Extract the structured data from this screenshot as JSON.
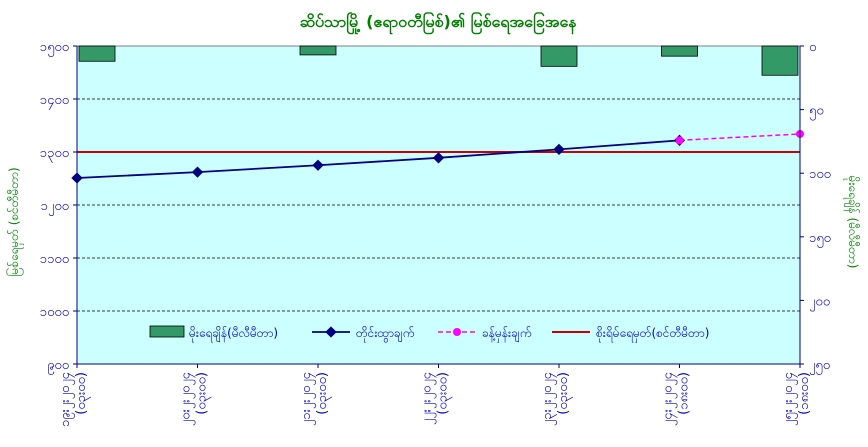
{
  "chart_data": {
    "type": "bar",
    "title": "ဆိပ်သာမြို့ (ဧရာဝတီမြစ်)၏ မြစ်ရေအခြေအနေ",
    "ylabel": "မြစ်ရေမှတ် (စင်တီမီတာ)",
    "y2label": "မိုးရေချိန် (မီလီမီတာ)",
    "ylim": [
      900,
      1500
    ],
    "y2lim": [
      0,
      250
    ],
    "y2_inverted": true,
    "yticks": [
      "၁၅၀၀",
      "၁၄၀၀",
      "၁၃၀၀",
      "၁၂၀၀",
      "၁၁၀၀",
      "၁၀၀၀",
      "၉၀၀"
    ],
    "y2ticks": [
      "၀",
      "၅၀",
      "၁၀၀",
      "၁၅၀",
      "၂၀၀",
      "၂၅၀"
    ],
    "categories": [
      {
        "date": "၁၉း၂း၂၀၂၄",
        "time": "(၀၃း၀၀)"
      },
      {
        "date": "၂၀း၂း၂၀၂၄",
        "time": "(၀၃း၀၀)"
      },
      {
        "date": "၂၁း၂း၂၀၂၄",
        "time": "(၀၃း၀၀)"
      },
      {
        "date": "၂၂း၂း၂၀၂၄",
        "time": "(၀၃း၀၀)"
      },
      {
        "date": "၂၃း၂း၂၀၂၄",
        "time": "(၀၃း၀၀)"
      },
      {
        "date": "၂၄း၂း၂၀၂၄",
        "time": "(၁၈း၀၀)"
      },
      {
        "date": "၂၅း၂း၂၀၂၄",
        "time": "(၁၈း၀၀)"
      }
    ],
    "legend_position": "bottom",
    "series": [
      {
        "name": "မိုးရေချိန်(မီလီမီတာ)",
        "type": "bar",
        "axis": "y2",
        "color": "#339966",
        "values": [
          12,
          0,
          7,
          0,
          16,
          8,
          23
        ]
      },
      {
        "name": "တိုင်းထွာချက်",
        "type": "line",
        "axis": "y",
        "color": "#000080",
        "values": [
          1251,
          1262,
          1275,
          1289,
          1305,
          1322,
          null
        ]
      },
      {
        "name": "ခန့်မှန်းချက်",
        "type": "line-dashed",
        "axis": "y",
        "color": "#ff00ff",
        "values": [
          null,
          null,
          null,
          null,
          null,
          1322,
          1334
        ]
      },
      {
        "name": "စိုးရိမ်ရေမှတ်(စင်တီမီတာ)",
        "type": "hline",
        "axis": "y",
        "color": "#cc0000",
        "value": 1300
      }
    ]
  }
}
